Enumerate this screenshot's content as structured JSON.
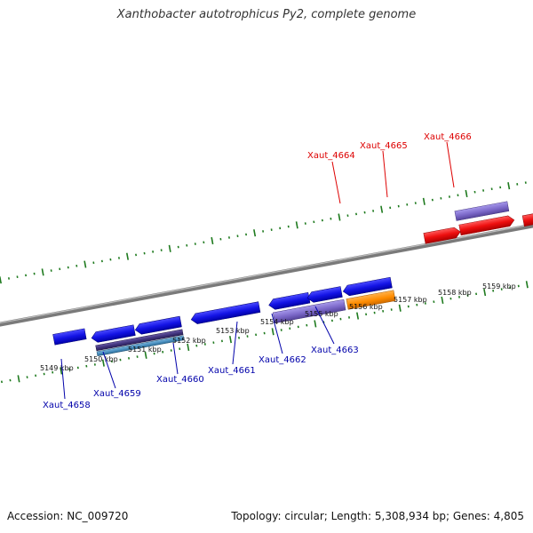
{
  "title": "Xanthobacter autotrophicus Py2, complete genome",
  "footer": {
    "accession": "Accession: NC_009720",
    "summary": "Topology: circular; Length: 5,308,934 bp; Genes: 4,805"
  },
  "kbp_labels": [
    "5149 kbp",
    "5150 kbp",
    "5151 kbp",
    "5152 kbp",
    "5153 kbp",
    "5154 kbp",
    "5155 kbp",
    "5156 kbp",
    "5157 kbp",
    "5158 kbp",
    "5159 kbp"
  ],
  "upper_labels": [
    "Xaut_4664",
    "Xaut_4665",
    "Xaut_4666"
  ],
  "lower_labels": [
    "Xaut_4658",
    "Xaut_4659",
    "Xaut_4660",
    "Xaut_4661",
    "Xaut_4662",
    "Xaut_4663"
  ],
  "colors": {
    "forward_gene": "#ee1111",
    "reverse_gene": "#1a1ae0",
    "purple_feature": "#7b68c8",
    "orange_feature": "#ff8c00",
    "teal_feature": "#4a8fbf",
    "olive_feature": "#6b8e23",
    "tick": "#1e7a1e",
    "upper_label": "#dd0000",
    "lower_label": "#0000aa"
  }
}
